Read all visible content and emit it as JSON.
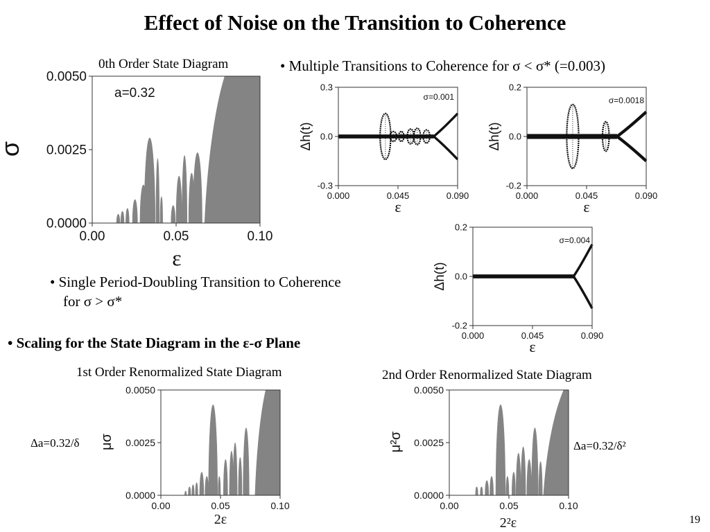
{
  "slide": {
    "title": "Effect of Noise on the Transition to Coherence",
    "page_number": "19"
  },
  "captions": {
    "zeroth": "0th Order State Diagram",
    "first": "1st Order Renormalized State Diagram",
    "second": "2nd Order Renormalized State Diagram"
  },
  "bullets": {
    "multiple": "• Multiple Transitions to Coherence for σ < σ* (=0.003)",
    "single_line1": "• Single Period-Doubling Transition to Coherence",
    "single_line2": "for σ > σ*",
    "scaling": "• Scaling for the State Diagram in the ε-σ Plane"
  },
  "annotations": {
    "delta_a_first": "Δa=0.32/δ",
    "delta_a_second": "Δa=0.32/δ²"
  },
  "colors": {
    "fill": "#848484",
    "trace": "#111111"
  },
  "chart_data": [
    {
      "id": "state0",
      "type": "area",
      "title": "0th Order State Diagram",
      "xlabel": "ε",
      "ylabel": "σ",
      "xlim": [
        0.0,
        0.1
      ],
      "ylim": [
        0.0,
        0.005
      ],
      "x_ticks": [
        "0.00",
        "0.05",
        "0.10"
      ],
      "y_ticks": [
        "0.0000",
        "0.0025",
        "0.0050"
      ],
      "annotation": "a=0.32",
      "fill_color": "#848484",
      "islands": [
        {
          "x": [
            0.0145,
            0.0165
          ],
          "peak": 0.0003
        },
        {
          "x": [
            0.017,
            0.019
          ],
          "peak": 0.0004
        },
        {
          "x": [
            0.02,
            0.022
          ],
          "peak": 0.0005
        },
        {
          "x": [
            0.024,
            0.027
          ],
          "peak": 0.0008
        },
        {
          "x": [
            0.0285,
            0.0325
          ],
          "peak": 0.0013
        },
        {
          "x": [
            0.031,
            0.0375
          ],
          "peak": 0.0029
        },
        {
          "x": [
            0.038,
            0.04
          ],
          "peak": 0.0022
        },
        {
          "x": [
            0.0405,
            0.042
          ],
          "peak": 0.0009
        },
        {
          "x": [
            0.047,
            0.0495
          ],
          "peak": 0.0006
        },
        {
          "x": [
            0.05,
            0.0535
          ],
          "peak": 0.0016
        },
        {
          "x": [
            0.0535,
            0.0565
          ],
          "peak": 0.0023
        },
        {
          "x": [
            0.0575,
            0.061
          ],
          "peak": 0.0017
        },
        {
          "x": [
            0.06,
            0.0655
          ],
          "peak": 0.0024
        }
      ],
      "boundary": {
        "x0": 0.067,
        "x1": 0.079
      }
    },
    {
      "id": "trace1",
      "type": "line",
      "xlabel": "ε",
      "ylabel": "Δh(t)",
      "xlim": [
        0.0,
        0.09
      ],
      "ylim": [
        -0.3,
        0.3
      ],
      "x_ticks": [
        "0.000",
        "0.045",
        "0.090"
      ],
      "y_ticks": [
        "-0.3",
        "0.0",
        "0.3"
      ],
      "annotation": "σ=0.001",
      "band": 0.012,
      "bubbles": [
        {
          "x": 0.0355,
          "half_width": 0.004,
          "amp": 0.14
        },
        {
          "x": 0.0415,
          "half_width": 0.0025,
          "amp": 0.03
        },
        {
          "x": 0.0475,
          "half_width": 0.002,
          "amp": 0.03
        },
        {
          "x": 0.0545,
          "half_width": 0.0025,
          "amp": 0.045
        },
        {
          "x": 0.0595,
          "half_width": 0.0025,
          "amp": 0.05
        },
        {
          "x": 0.0665,
          "half_width": 0.0025,
          "amp": 0.04
        }
      ],
      "bifurcation_x": 0.072,
      "branch_end": 0.14
    },
    {
      "id": "trace2",
      "type": "line",
      "xlabel": "ε",
      "ylabel": "Δh(t)",
      "xlim": [
        0.0,
        0.09
      ],
      "ylim": [
        -0.2,
        0.2
      ],
      "x_ticks": [
        "0.000",
        "0.045",
        "0.090"
      ],
      "y_ticks": [
        "-0.2",
        "0.0",
        "0.2"
      ],
      "annotation": "σ=0.0018",
      "band": 0.01,
      "bubbles": [
        {
          "x": 0.0345,
          "half_width": 0.0045,
          "amp": 0.13
        },
        {
          "x": 0.0595,
          "half_width": 0.0025,
          "amp": 0.06
        }
      ],
      "bifurcation_x": 0.068,
      "branch_end": 0.1
    },
    {
      "id": "trace3",
      "type": "line",
      "xlabel": "ε",
      "ylabel": "Δh(t)",
      "xlim": [
        0.0,
        0.09
      ],
      "ylim": [
        -0.2,
        0.2
      ],
      "x_ticks": [
        "0.000",
        "0.045",
        "0.090"
      ],
      "y_ticks": [
        "-0.2",
        "0.0",
        "0.2"
      ],
      "annotation": "σ=0.004",
      "band": 0.008,
      "bubbles": [],
      "bifurcation_x": 0.076,
      "branch_end": 0.13
    },
    {
      "id": "state1",
      "type": "area",
      "title": "1st Order Renormalized State Diagram",
      "xlabel": "2ε",
      "ylabel": "μσ",
      "xlim": [
        0.0,
        0.1
      ],
      "ylim": [
        0.0,
        0.005
      ],
      "x_ticks": [
        "0.00",
        "0.05",
        "0.10"
      ],
      "y_ticks": [
        "0.0000",
        "0.0025",
        "0.0050"
      ],
      "fill_color": "#848484",
      "islands": [
        {
          "x": [
            0.02,
            0.0215
          ],
          "peak": 0.0002
        },
        {
          "x": [
            0.023,
            0.025
          ],
          "peak": 0.0004
        },
        {
          "x": [
            0.026,
            0.028
          ],
          "peak": 0.0005
        },
        {
          "x": [
            0.029,
            0.031
          ],
          "peak": 0.0006
        },
        {
          "x": [
            0.0325,
            0.036
          ],
          "peak": 0.0011
        },
        {
          "x": [
            0.037,
            0.04
          ],
          "peak": 0.0009
        },
        {
          "x": [
            0.04,
            0.0475
          ],
          "peak": 0.0043
        },
        {
          "x": [
            0.048,
            0.05
          ],
          "peak": 0.0009
        },
        {
          "x": [
            0.0525,
            0.056
          ],
          "peak": 0.0017
        },
        {
          "x": [
            0.0575,
            0.061
          ],
          "peak": 0.0021
        },
        {
          "x": [
            0.0605,
            0.064
          ],
          "peak": 0.0025
        },
        {
          "x": [
            0.065,
            0.068
          ],
          "peak": 0.0018
        },
        {
          "x": [
            0.069,
            0.074
          ],
          "peak": 0.0032
        }
      ],
      "boundary": {
        "x0": 0.079,
        "x1": 0.088
      }
    },
    {
      "id": "state2",
      "type": "area",
      "title": "2nd Order Renormalized State Diagram",
      "xlabel": "2²ε",
      "ylabel": "μ²σ",
      "xlim": [
        0.0,
        0.1
      ],
      "ylim": [
        0.0,
        0.005
      ],
      "x_ticks": [
        "0.00",
        "0.05",
        "0.10"
      ],
      "y_ticks": [
        "0.0000",
        "0.0025",
        "0.0050"
      ],
      "fill_color": "#848484",
      "islands": [
        {
          "x": [
            0.022,
            0.024
          ],
          "peak": 0.0004
        },
        {
          "x": [
            0.026,
            0.028
          ],
          "peak": 0.0004
        },
        {
          "x": [
            0.03,
            0.033
          ],
          "peak": 0.0007
        },
        {
          "x": [
            0.034,
            0.037
          ],
          "peak": 0.0009
        },
        {
          "x": [
            0.039,
            0.047
          ],
          "peak": 0.0043
        },
        {
          "x": [
            0.0475,
            0.05
          ],
          "peak": 0.0009
        },
        {
          "x": [
            0.0525,
            0.0555
          ],
          "peak": 0.0011
        },
        {
          "x": [
            0.056,
            0.06
          ],
          "peak": 0.002
        },
        {
          "x": [
            0.06,
            0.064
          ],
          "peak": 0.0023
        },
        {
          "x": [
            0.065,
            0.069
          ],
          "peak": 0.0017
        },
        {
          "x": [
            0.069,
            0.0745
          ],
          "peak": 0.0032
        },
        {
          "x": [
            0.075,
            0.078
          ],
          "peak": 0.0016
        }
      ],
      "boundary": {
        "x0": 0.079,
        "x1": 0.096
      }
    }
  ]
}
